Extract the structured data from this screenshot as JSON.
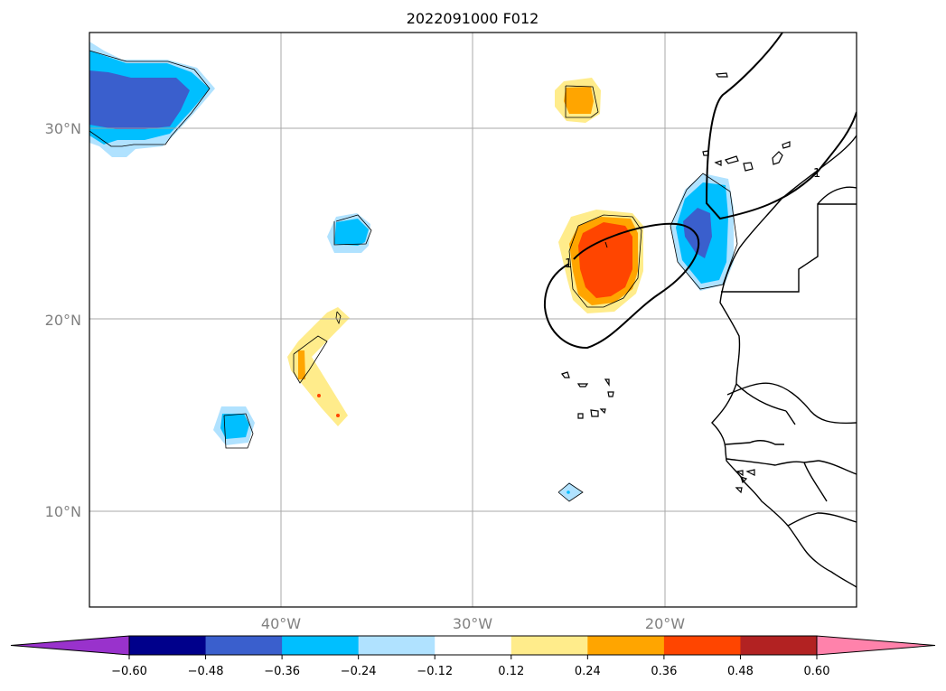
{
  "title": "2022091000 F012",
  "lat_ticks": [
    "30°N",
    "20°N",
    "10°N"
  ],
  "lon_ticks": [
    "40°W",
    "30°W",
    "20°W"
  ],
  "map_extent": {
    "lon": [
      -50,
      -10
    ],
    "lat": [
      5,
      35
    ]
  },
  "contour_label": "1",
  "colorbar": {
    "colors": [
      "#9932cc",
      "#00008b",
      "#3a5fcd",
      "#00bfff",
      "#b0e2ff",
      "#ffffff",
      "#ffec8b",
      "#ffa500",
      "#ff4500",
      "#b22222",
      "#ff82ab"
    ],
    "labels": [
      "−0.60",
      "−0.48",
      "−0.36",
      "−0.24",
      "−0.12",
      "0.12",
      "0.24",
      "0.36",
      "0.48",
      "0.60"
    ]
  }
}
